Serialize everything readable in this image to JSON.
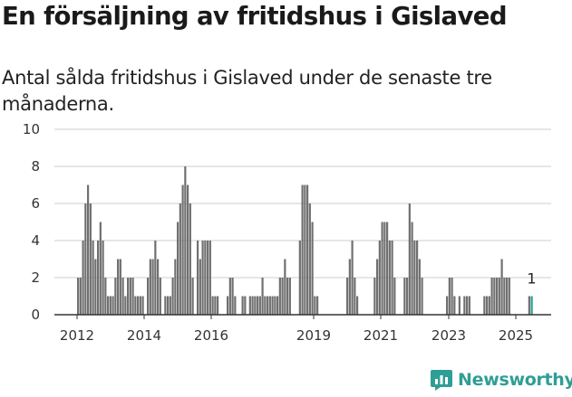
{
  "title": "En försäljning av fritidshus i Gislaved",
  "subtitle": "Antal sålda fritidshus i Gislaved under de senaste tre månaderna.",
  "brand": {
    "name": "Newsworthy",
    "color": "#2f9e95",
    "icon": "newsworthy-chart-logo-icon"
  },
  "chart_data": {
    "type": "bar",
    "title": "En försäljning av fritidshus i Gislaved",
    "xlabel": "",
    "ylabel": "",
    "ylim": [
      0,
      10
    ],
    "yticks": [
      0,
      2,
      4,
      6,
      8,
      10
    ],
    "xticks": [
      "2012",
      "2014",
      "2016",
      "2019",
      "2021",
      "2023",
      "2025"
    ],
    "grid": true,
    "bar_color": "#707070",
    "highlight_color": "#2a9d8f",
    "highlight_label": "1",
    "series": [
      {
        "values": [
          2,
          2,
          4,
          6,
          7,
          6,
          4,
          3,
          4,
          5,
          4,
          2,
          1,
          1,
          1,
          2,
          3,
          3,
          2,
          1,
          2,
          2,
          2,
          1,
          1,
          1,
          1,
          0,
          2,
          3,
          3,
          4,
          3,
          2,
          0,
          1,
          1,
          1,
          2,
          3,
          5,
          6,
          7,
          8,
          7,
          6,
          2,
          0,
          4,
          3,
          4,
          4,
          4,
          4,
          1,
          1,
          1,
          0,
          0,
          0,
          1,
          2,
          2,
          1,
          0,
          0,
          1,
          1,
          0,
          1,
          1,
          1,
          1,
          1,
          2,
          1,
          1,
          1,
          1,
          1,
          1,
          2,
          2,
          3,
          2,
          2,
          0,
          0,
          0,
          4,
          7,
          7,
          7,
          6,
          5,
          1,
          1,
          0,
          0,
          0,
          0,
          0,
          0,
          0,
          0,
          0,
          0,
          0,
          2,
          3,
          4,
          2,
          1,
          0,
          0,
          0,
          0,
          0,
          0,
          2,
          3,
          4,
          5,
          5,
          5,
          4,
          4,
          2,
          0,
          0,
          0,
          2,
          2,
          6,
          5,
          4,
          4,
          3,
          2,
          0,
          0,
          0,
          0,
          0,
          0,
          0,
          0,
          0,
          1,
          2,
          2,
          1,
          0,
          1,
          0,
          1,
          1,
          1,
          0,
          0,
          0,
          0,
          0,
          1,
          1,
          1,
          2,
          2,
          2,
          2,
          3,
          2,
          2,
          2,
          0,
          0,
          0,
          0,
          0,
          0,
          0,
          1
        ]
      }
    ]
  }
}
